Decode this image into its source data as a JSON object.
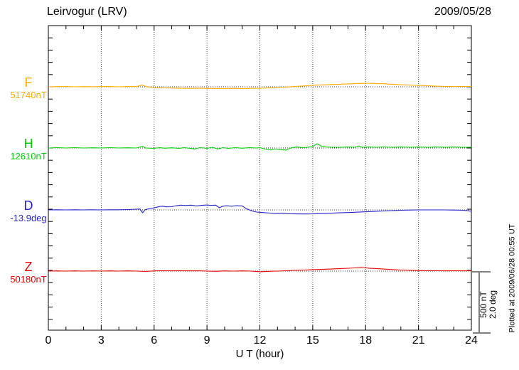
{
  "header": {
    "station": "Leirvogur (LRV)",
    "date": "2009/05/28"
  },
  "footer": {
    "xlabel": "U T (hour)"
  },
  "side_notes": {
    "scale_nT": "500 nT",
    "scale_deg": "2.0 deg",
    "plotted_at": "Plotted at 2009/06/28 00:55 UT"
  },
  "chart_data": {
    "type": "line",
    "title": "Leirvogur (LRV)",
    "date": "2009/05/28",
    "xlabel": "U T (hour)",
    "xlim": [
      0,
      24
    ],
    "x_ticks": [
      0,
      3,
      6,
      9,
      12,
      15,
      18,
      21,
      24
    ],
    "x_minor_tick_hours": 1,
    "grid": {
      "vertical_dotted_every_hours": 3,
      "horizontal_dotted": "one dotted baseline per channel",
      "edge_tick_interval_nT": 100
    },
    "scale_bar": {
      "nT": "500 nT",
      "deg": "2.0 deg"
    },
    "plotted_at": "Plotted at 2009/06/28 00:55 UT",
    "series": [
      {
        "name": "F",
        "value_label": "51740nT",
        "unit": "nT",
        "color": "#ffaa00",
        "points": [
          [
            0,
            0
          ],
          [
            0.5,
            2
          ],
          [
            1,
            3
          ],
          [
            1.5,
            0
          ],
          [
            2,
            2
          ],
          [
            2.5,
            0
          ],
          [
            3,
            3
          ],
          [
            3.5,
            2
          ],
          [
            4,
            0
          ],
          [
            4.5,
            3
          ],
          [
            5,
            2
          ],
          [
            5.3,
            14
          ],
          [
            5.55,
            2
          ],
          [
            5.8,
            -4
          ],
          [
            6,
            -6
          ],
          [
            6.5,
            -9
          ],
          [
            7,
            -10
          ],
          [
            7.5,
            -12
          ],
          [
            8,
            -13
          ],
          [
            8.5,
            -12
          ],
          [
            9,
            -13
          ],
          [
            9.5,
            -14
          ],
          [
            10,
            -14
          ],
          [
            10.5,
            -13
          ],
          [
            11,
            -14
          ],
          [
            11.5,
            -13
          ],
          [
            12,
            -12
          ],
          [
            12.5,
            -9
          ],
          [
            13,
            -6
          ],
          [
            13.5,
            -2
          ],
          [
            14,
            3
          ],
          [
            14.5,
            7
          ],
          [
            15,
            12
          ],
          [
            15.5,
            15
          ],
          [
            16,
            18
          ],
          [
            16.5,
            21
          ],
          [
            17,
            24
          ],
          [
            17.5,
            27
          ],
          [
            18,
            29
          ],
          [
            18.5,
            27
          ],
          [
            19,
            25
          ],
          [
            19.5,
            21
          ],
          [
            20,
            17
          ],
          [
            20.5,
            14
          ],
          [
            21,
            11
          ],
          [
            21.5,
            8
          ],
          [
            22,
            5
          ],
          [
            22.5,
            3
          ],
          [
            23,
            3
          ],
          [
            23.5,
            3
          ],
          [
            24,
            3
          ]
        ]
      },
      {
        "name": "H",
        "value_label": "12610nT",
        "unit": "nT",
        "color": "#00d400",
        "points": [
          [
            0,
            0
          ],
          [
            0.5,
            3
          ],
          [
            1,
            0
          ],
          [
            1.5,
            3
          ],
          [
            2,
            0
          ],
          [
            2.5,
            2
          ],
          [
            3,
            0
          ],
          [
            3.5,
            3
          ],
          [
            4,
            0
          ],
          [
            4.5,
            2
          ],
          [
            5,
            0
          ],
          [
            5.35,
            14
          ],
          [
            5.5,
            0
          ],
          [
            6,
            -3
          ],
          [
            6.3,
            3
          ],
          [
            6.6,
            -2
          ],
          [
            7,
            2
          ],
          [
            7.4,
            -3
          ],
          [
            7.7,
            3
          ],
          [
            8,
            -2
          ],
          [
            8.3,
            -8
          ],
          [
            8.6,
            3
          ],
          [
            9,
            -3
          ],
          [
            9.3,
            6
          ],
          [
            9.6,
            -8
          ],
          [
            9.9,
            3
          ],
          [
            10.2,
            -3
          ],
          [
            10.6,
            3
          ],
          [
            11,
            -2
          ],
          [
            11.4,
            3
          ],
          [
            11.8,
            0
          ],
          [
            12,
            3
          ],
          [
            12.3,
            -9
          ],
          [
            12.6,
            -15
          ],
          [
            12.9,
            -9
          ],
          [
            13.2,
            -14
          ],
          [
            13.5,
            -17
          ],
          [
            13.8,
            3
          ],
          [
            14.1,
            8
          ],
          [
            14.4,
            3
          ],
          [
            14.7,
            6
          ],
          [
            15,
            12
          ],
          [
            15.25,
            35
          ],
          [
            15.5,
            14
          ],
          [
            15.8,
            8
          ],
          [
            16.2,
            6
          ],
          [
            16.6,
            6
          ],
          [
            17,
            8
          ],
          [
            17.4,
            6
          ],
          [
            17.6,
            17
          ],
          [
            17.8,
            6
          ],
          [
            18.2,
            8
          ],
          [
            18.6,
            6
          ],
          [
            19,
            9
          ],
          [
            19.5,
            6
          ],
          [
            20,
            8
          ],
          [
            20.5,
            6
          ],
          [
            21,
            8
          ],
          [
            21.5,
            6
          ],
          [
            22,
            8
          ],
          [
            22.5,
            6
          ],
          [
            23,
            8
          ],
          [
            23.5,
            6
          ],
          [
            24,
            6
          ]
        ]
      },
      {
        "name": "D",
        "value_label": "-13.9deg",
        "unit": "deg",
        "color": "#2323cc",
        "points": [
          [
            0,
            0
          ],
          [
            0.5,
            0.005
          ],
          [
            1,
            0
          ],
          [
            1.5,
            0.005
          ],
          [
            2,
            0
          ],
          [
            2.5,
            0.005
          ],
          [
            3,
            0
          ],
          [
            3.5,
            0.005
          ],
          [
            4,
            0.005
          ],
          [
            4.5,
            0.012
          ],
          [
            5,
            0.023
          ],
          [
            5.2,
            0.03
          ],
          [
            5.35,
            -0.093
          ],
          [
            5.5,
            0.012
          ],
          [
            5.8,
            0.047
          ],
          [
            6,
            0.065
          ],
          [
            6.3,
            0.11
          ],
          [
            6.5,
            0.12
          ],
          [
            6.7,
            0.1
          ],
          [
            7,
            0.105
          ],
          [
            7.2,
            0.13
          ],
          [
            7.5,
            0.155
          ],
          [
            7.8,
            0.145
          ],
          [
            8.1,
            0.155
          ],
          [
            8.4,
            0.13
          ],
          [
            8.7,
            0.15
          ],
          [
            9,
            0.16
          ],
          [
            9.2,
            0.15
          ],
          [
            9.5,
            0.155
          ],
          [
            9.7,
            0.07
          ],
          [
            9.9,
            0.12
          ],
          [
            10.1,
            0.135
          ],
          [
            10.4,
            0.12
          ],
          [
            10.7,
            0.14
          ],
          [
            11,
            0.13
          ],
          [
            11.2,
            0.05
          ],
          [
            11.5,
            -0.023
          ],
          [
            11.8,
            -0.07
          ],
          [
            12,
            -0.08
          ],
          [
            12.3,
            -0.09
          ],
          [
            12.6,
            -0.105
          ],
          [
            13,
            -0.12
          ],
          [
            13.3,
            -0.11
          ],
          [
            13.6,
            -0.125
          ],
          [
            14,
            -0.13
          ],
          [
            14.5,
            -0.132
          ],
          [
            15,
            -0.13
          ],
          [
            15.5,
            -0.12
          ],
          [
            16,
            -0.11
          ],
          [
            16.5,
            -0.095
          ],
          [
            17,
            -0.085
          ],
          [
            17.5,
            -0.075
          ],
          [
            18,
            -0.06
          ],
          [
            18.5,
            -0.05
          ],
          [
            19,
            -0.035
          ],
          [
            19.5,
            -0.023
          ],
          [
            20,
            -0.012
          ],
          [
            20.5,
            -0.005
          ],
          [
            21,
            0
          ],
          [
            21.5,
            0
          ],
          [
            22,
            0
          ],
          [
            22.5,
            0
          ],
          [
            23,
            -0.005
          ],
          [
            23.5,
            -0.012
          ],
          [
            23.8,
            -0.023
          ],
          [
            24,
            -0.047
          ]
        ]
      },
      {
        "name": "Z",
        "value_label": "50180nT",
        "unit": "nT",
        "color": "#e80000",
        "points": [
          [
            0,
            0
          ],
          [
            0.5,
            2
          ],
          [
            1,
            0
          ],
          [
            1.5,
            2
          ],
          [
            2,
            0
          ],
          [
            2.5,
            2
          ],
          [
            3,
            0
          ],
          [
            3.5,
            2
          ],
          [
            4,
            0
          ],
          [
            4.5,
            2
          ],
          [
            5,
            0
          ],
          [
            5.5,
            -3
          ],
          [
            6,
            2
          ],
          [
            6.5,
            3
          ],
          [
            7,
            2
          ],
          [
            7.5,
            3
          ],
          [
            8,
            2
          ],
          [
            8.5,
            3
          ],
          [
            9,
            0
          ],
          [
            9.5,
            -2
          ],
          [
            10,
            2
          ],
          [
            10.5,
            0
          ],
          [
            11,
            2
          ],
          [
            11.5,
            0
          ],
          [
            12,
            -5
          ],
          [
            12.5,
            -2
          ],
          [
            13,
            0
          ],
          [
            13.5,
            3
          ],
          [
            14,
            6
          ],
          [
            14.5,
            9
          ],
          [
            15,
            12
          ],
          [
            15.5,
            14
          ],
          [
            16,
            17
          ],
          [
            16.5,
            20
          ],
          [
            17,
            23
          ],
          [
            17.4,
            26
          ],
          [
            17.8,
            29
          ],
          [
            18.2,
            24
          ],
          [
            18.6,
            21
          ],
          [
            19,
            17
          ],
          [
            19.5,
            13
          ],
          [
            20,
            9
          ],
          [
            20.5,
            6
          ],
          [
            21,
            4
          ],
          [
            21.5,
            3
          ],
          [
            22,
            3
          ],
          [
            22.5,
            2
          ],
          [
            23,
            3
          ],
          [
            23.5,
            2
          ],
          [
            24,
            3
          ]
        ]
      }
    ]
  }
}
